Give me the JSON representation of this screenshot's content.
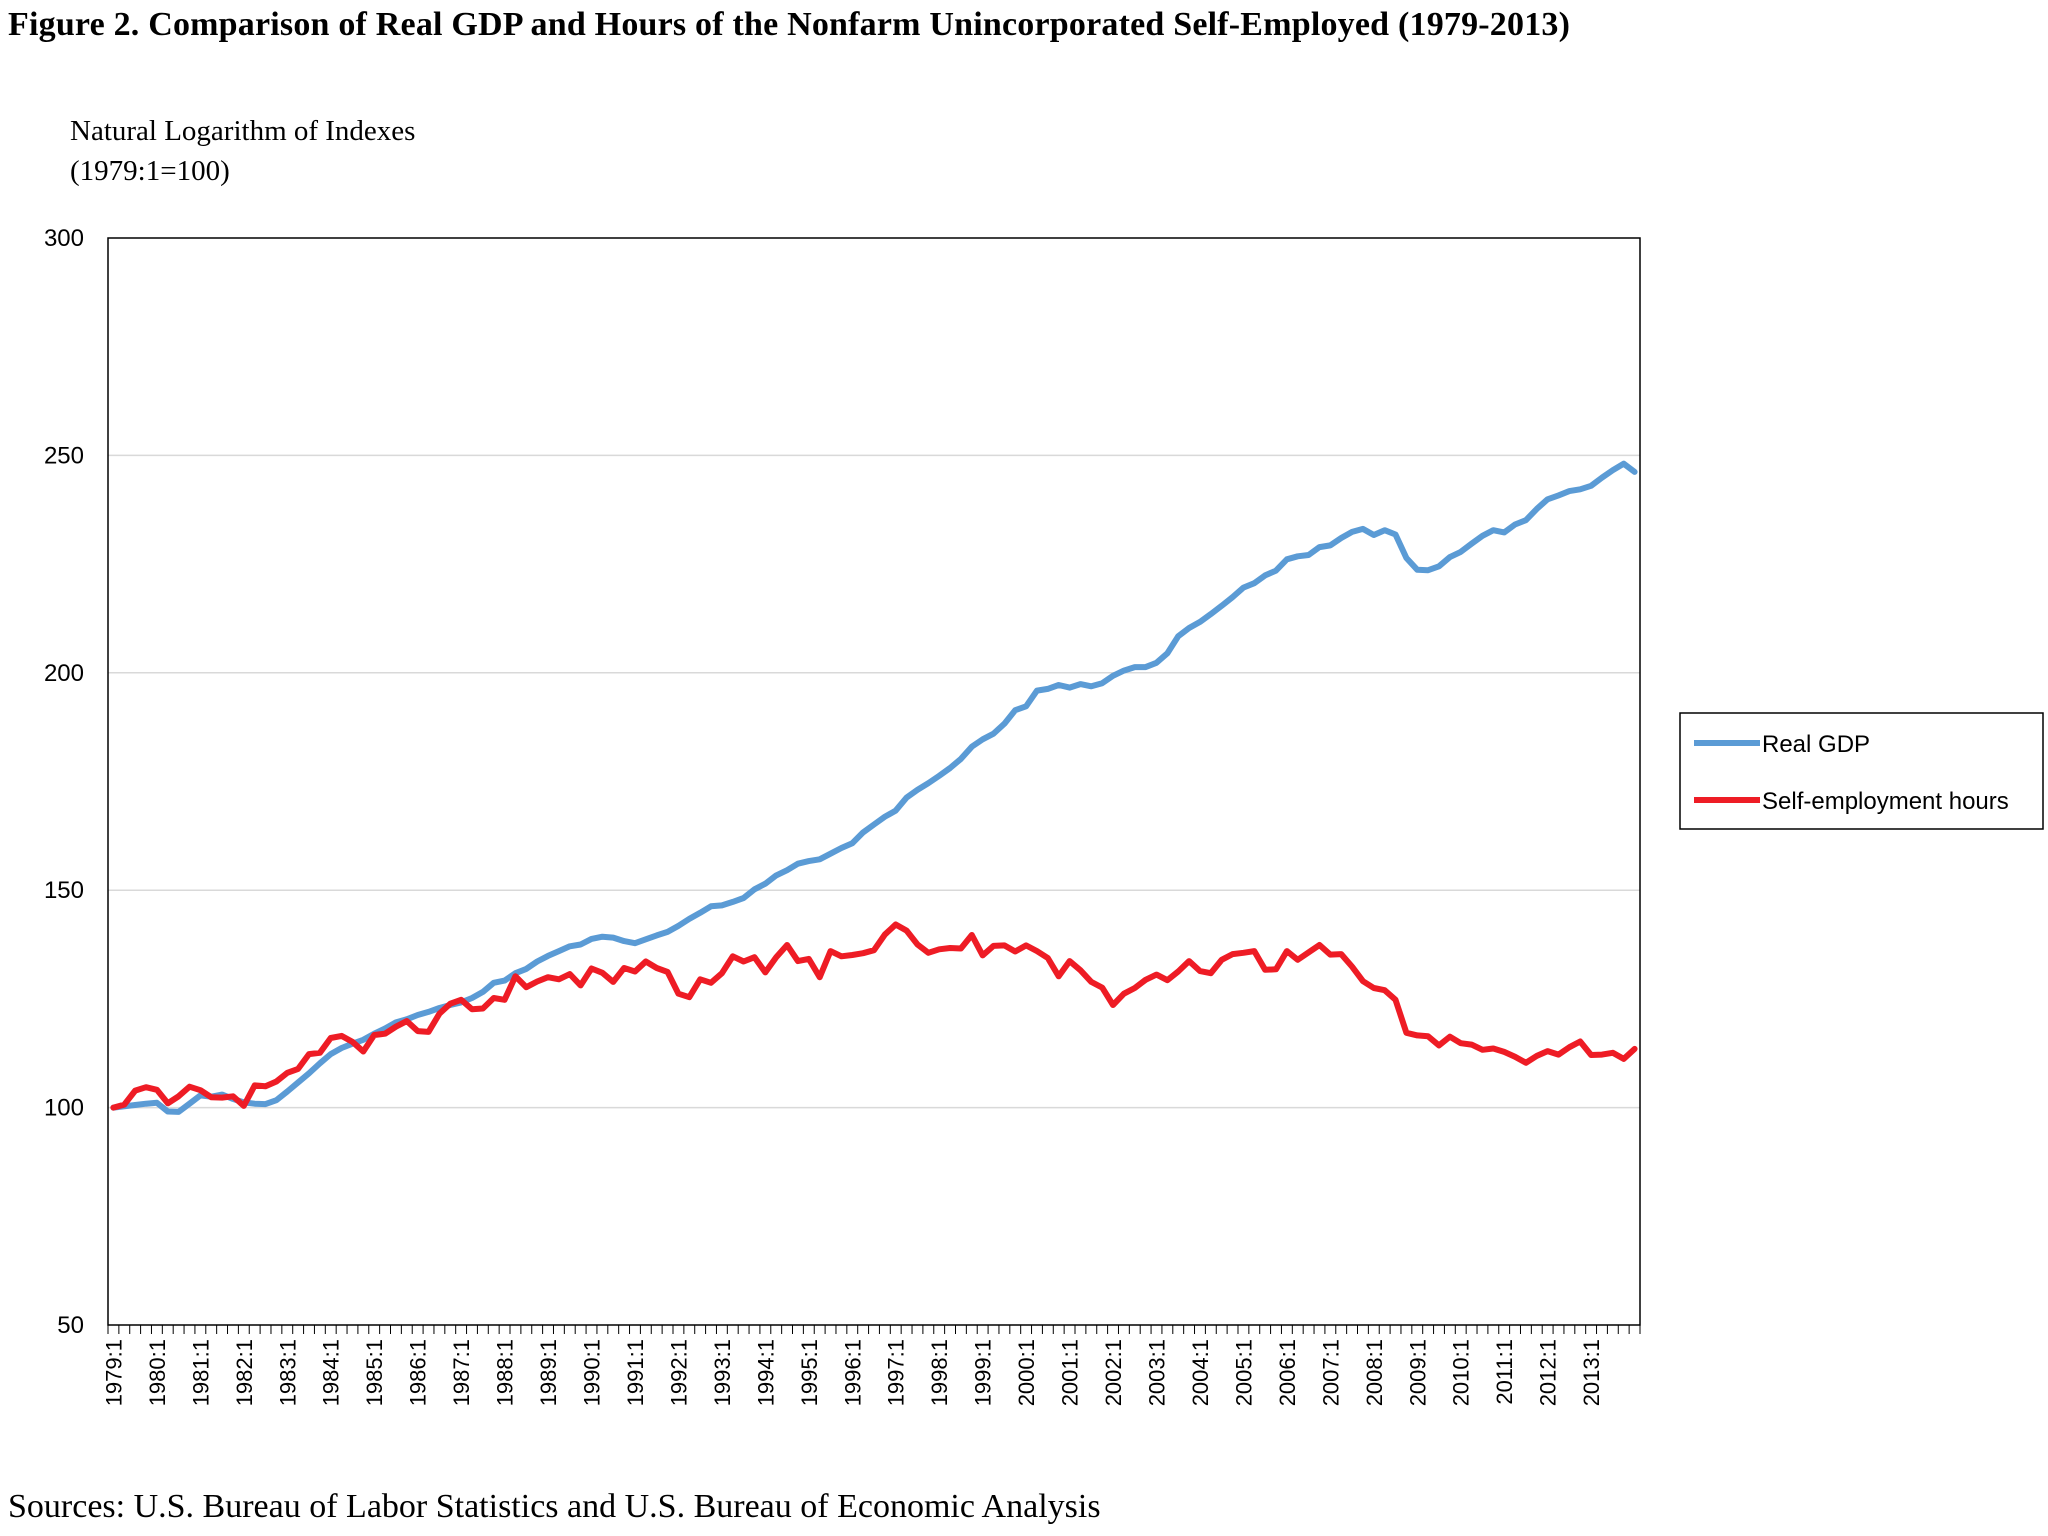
{
  "figure": {
    "title": "Figure 2. Comparison of Real GDP and Hours of the Nonfarm Unincorporated Self-Employed (1979-2013)",
    "source": "Sources: U.S. Bureau of Labor Statistics and U.S. Bureau of Economic Analysis"
  },
  "chart_data": {
    "type": "line",
    "title": "Figure 2. Comparison of Real GDP and Hours of the Nonfarm Unincorporated Self-Employed (1979-2013)",
    "ylabel_line1": "Natural Logarithm of Indexes",
    "ylabel_line2": "(1979:1=100)",
    "xlabel": "",
    "ylim": [
      50,
      300
    ],
    "yticks": [
      50,
      100,
      150,
      200,
      250,
      300
    ],
    "grid": true,
    "legend_position": "right",
    "x_start_year": 1979,
    "quarters_per_year": 4,
    "x_tick_labels": [
      "1979:1",
      "1980:1",
      "1981:1",
      "1982:1",
      "1983:1",
      "1984:1",
      "1985:1",
      "1986:1",
      "1987:1",
      "1988:1",
      "1989:1",
      "1990:1",
      "1991:1",
      "1992:1",
      "1993:1",
      "1994:1",
      "1995:1",
      "1996:1",
      "1997:1",
      "1998:1",
      "1999:1",
      "2000:1",
      "2001:1",
      "2002:1",
      "2003:1",
      "2004:1",
      "2005:1",
      "2006:1",
      "2007:1",
      "2008:1",
      "2009:1",
      "2010:1",
      "2011:1",
      "2012:1",
      "2013:1"
    ],
    "series": [
      {
        "name": "Real GDP",
        "color": "#5B9BD5",
        "values": [
          100,
          100.3,
          100.6,
          100.9,
          101.1,
          99.1,
          99.0,
          100.9,
          102.8,
          102.5,
          103.0,
          102.0,
          101.2,
          100.9,
          100.8,
          101.7,
          103.7,
          105.8,
          107.9,
          110.2,
          112.3,
          113.7,
          114.7,
          115.6,
          117.0,
          118.2,
          119.6,
          120.3,
          121.3,
          122.0,
          122.9,
          123.6,
          124.2,
          125.2,
          126.6,
          128.7,
          129.2,
          130.9,
          131.9,
          133.6,
          134.9,
          136.0,
          137.1,
          137.5,
          138.8,
          139.3,
          139.1,
          138.3,
          137.8,
          138.7,
          139.6,
          140.4,
          141.8,
          143.4,
          144.8,
          146.3,
          146.5,
          147.3,
          148.2,
          150.2,
          151.5,
          153.4,
          154.6,
          156.1,
          156.7,
          157.1,
          158.4,
          159.7,
          160.8,
          163.3,
          165.1,
          166.9,
          168.3,
          171.3,
          173.1,
          174.6,
          176.3,
          178.1,
          180.2,
          183.0,
          184.7,
          186.0,
          188.3,
          191.4,
          192.3,
          195.9,
          196.3,
          197.2,
          196.6,
          197.4,
          196.9,
          197.6,
          199.3,
          200.5,
          201.3,
          201.3,
          202.3,
          204.5,
          208.4,
          210.3,
          211.7,
          213.5,
          215.4,
          217.4,
          219.6,
          220.6,
          222.4,
          223.5,
          226.1,
          226.8,
          227.1,
          228.9,
          229.3,
          231.0,
          232.4,
          233.1,
          231.7,
          232.8,
          231.8,
          226.4,
          223.7,
          223.6,
          224.5,
          226.6,
          227.8,
          229.7,
          231.5,
          232.8,
          232.3,
          234.1,
          235.1,
          237.7,
          239.9,
          240.8,
          241.8,
          242.2,
          243.0,
          244.9,
          246.6,
          248.1,
          246.2
        ]
      },
      {
        "name": "Self-employment hours",
        "color": "#EE1C25",
        "values": [
          100,
          100.7,
          103.9,
          104.7,
          104.1,
          101.0,
          102.6,
          104.8,
          104.0,
          102.4,
          102.3,
          102.6,
          100.4,
          105.1,
          104.9,
          106.0,
          108.0,
          108.9,
          112.3,
          112.6,
          116.0,
          116.5,
          115.1,
          112.9,
          116.7,
          117.0,
          118.6,
          119.9,
          117.6,
          117.4,
          121.6,
          123.9,
          124.8,
          122.6,
          122.8,
          125.2,
          124.8,
          130.2,
          127.7,
          129.0,
          130.0,
          129.5,
          130.7,
          128.1,
          132.0,
          131.0,
          128.9,
          132.1,
          131.3,
          133.6,
          132.1,
          131.2,
          126.2,
          125.4,
          129.5,
          128.7,
          130.9,
          134.8,
          133.6,
          134.6,
          131.1,
          134.6,
          137.4,
          133.7,
          134.2,
          130.0,
          136.0,
          134.8,
          135.1,
          135.5,
          136.2,
          139.8,
          142.1,
          140.7,
          137.5,
          135.6,
          136.4,
          136.7,
          136.6,
          139.7,
          135.0,
          137.2,
          137.3,
          135.9,
          137.3,
          136.0,
          134.4,
          130.2,
          133.7,
          131.6,
          128.9,
          127.6,
          123.6,
          126.2,
          127.5,
          129.4,
          130.6,
          129.3,
          131.3,
          133.7,
          131.4,
          130.9,
          134.0,
          135.3,
          135.6,
          136.0,
          131.7,
          131.8,
          136.0,
          134.0,
          135.7,
          137.4,
          135.2,
          135.3,
          132.4,
          129.1,
          127.5,
          127.0,
          124.8,
          117.2,
          116.6,
          116.4,
          114.3,
          116.3,
          114.8,
          114.5,
          113.3,
          113.6,
          112.8,
          111.7,
          110.3,
          111.9,
          113.0,
          112.2,
          113.9,
          115.2,
          112.1,
          112.2,
          112.6,
          111.2,
          113.5
        ]
      }
    ]
  }
}
